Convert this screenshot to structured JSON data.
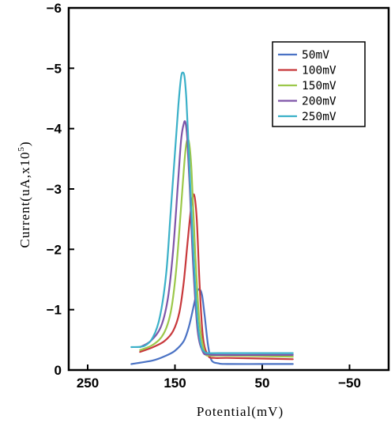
{
  "chart_data": {
    "type": "line",
    "xlabel": "Potential(mV)",
    "ylabel": "Current(uA,x10",
    "ylabel_sup": "5",
    "ylabel_close": ")",
    "xlim": [
      280,
      -90
    ],
    "ylim": [
      0,
      -6
    ],
    "xticks": [
      250,
      150,
      50,
      -50
    ],
    "xtick_labels": [
      "250",
      "150",
      "50",
      "−50"
    ],
    "yticks": [
      0,
      -1,
      -2,
      -3,
      -4,
      -5,
      -6
    ],
    "ytick_labels": [
      "0",
      "−1",
      "−2",
      "−3",
      "−4",
      "−5",
      "−6"
    ],
    "legend_position": "top-right",
    "series": [
      {
        "name": "50mV",
        "color": "#4a72c4",
        "x": [
          200,
          175,
          160,
          150,
          140,
          134,
          128,
          125,
          122,
          119,
          116,
          112,
          108,
          100,
          90,
          50,
          15
        ],
        "y": [
          -0.1,
          -0.16,
          -0.24,
          -0.32,
          -0.48,
          -0.72,
          -1.1,
          -1.28,
          -1.34,
          -1.24,
          -0.9,
          -0.4,
          -0.16,
          -0.11,
          -0.1,
          -0.1,
          -0.1
        ]
      },
      {
        "name": "100mV",
        "color": "#c8383b",
        "x": [
          190,
          175,
          162,
          152,
          145,
          140,
          135,
          131,
          128,
          125,
          122,
          118,
          112,
          105,
          90,
          50,
          15
        ],
        "y": [
          -0.3,
          -0.38,
          -0.48,
          -0.65,
          -0.95,
          -1.45,
          -2.2,
          -2.75,
          -2.9,
          -2.5,
          -1.5,
          -0.55,
          -0.24,
          -0.2,
          -0.2,
          -0.19,
          -0.18
        ]
      },
      {
        "name": "150mV",
        "color": "#9cc84a",
        "x": [
          190,
          175,
          163,
          155,
          149,
          144,
          140,
          137,
          134,
          131,
          127,
          122,
          116,
          110,
          100,
          50,
          15
        ],
        "y": [
          -0.33,
          -0.42,
          -0.6,
          -0.95,
          -1.6,
          -2.5,
          -3.3,
          -3.75,
          -3.78,
          -3.3,
          -2.0,
          -0.8,
          -0.3,
          -0.24,
          -0.24,
          -0.23,
          -0.22
        ]
      },
      {
        "name": "200mV",
        "color": "#7e55a8",
        "x": [
          190,
          178,
          166,
          158,
          152,
          147,
          143,
          140,
          138,
          136,
          133,
          129,
          124,
          118,
          112,
          100,
          50,
          15
        ],
        "y": [
          -0.38,
          -0.48,
          -0.72,
          -1.2,
          -2.0,
          -3.0,
          -3.8,
          -4.08,
          -4.1,
          -3.85,
          -3.0,
          -1.7,
          -0.65,
          -0.3,
          -0.26,
          -0.25,
          -0.25,
          -0.25
        ]
      },
      {
        "name": "250mV",
        "color": "#3ab0c8",
        "x": [
          200,
          185,
          175,
          167,
          160,
          155,
          150,
          146,
          143,
          141,
          139,
          137,
          135,
          132,
          128,
          124,
          120,
          116,
          112,
          100,
          50,
          15
        ],
        "y": [
          -0.38,
          -0.4,
          -0.55,
          -0.9,
          -1.6,
          -2.6,
          -3.6,
          -4.4,
          -4.85,
          -4.93,
          -4.85,
          -4.5,
          -3.9,
          -2.9,
          -1.7,
          -0.8,
          -0.4,
          -0.3,
          -0.28,
          -0.28,
          -0.28,
          -0.28
        ]
      }
    ]
  }
}
